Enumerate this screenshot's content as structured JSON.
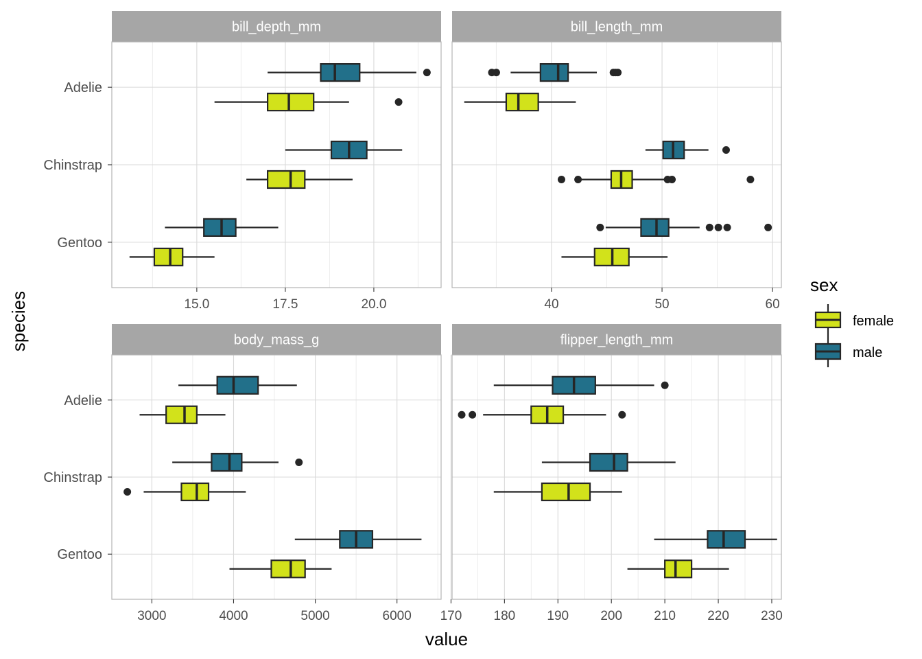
{
  "colors": {
    "female": "#d2e21b",
    "male": "#22708a",
    "strip_bg": "#a6a6a6",
    "strip_text": "#ffffff",
    "panel_border": "#b3b3b3",
    "grid_major": "#d9d9d9",
    "grid_minor": "#ececec",
    "box_line": "#262626",
    "axis_text": "#4d4d4d"
  },
  "chart_data": {
    "type": "boxplot",
    "xlabel": "value",
    "ylabel": "species",
    "categories": [
      "Adelie",
      "Chinstrap",
      "Gentoo"
    ],
    "legend": {
      "title": "sex",
      "position": "right",
      "entries": [
        {
          "key": "female",
          "label": "female"
        },
        {
          "key": "male",
          "label": "male"
        }
      ]
    },
    "panels": [
      {
        "title": "bill_depth_mm",
        "xlim": [
          12.6,
          21.9
        ],
        "ticks": [
          15,
          17.5,
          20
        ],
        "tick_labels": [
          "15.0",
          "17.5",
          "20.0"
        ],
        "minor_ticks": [
          13.75,
          16.25,
          18.75,
          21.25
        ],
        "boxes": [
          {
            "species": "Adelie",
            "sex": "female",
            "whisker_low": 15.5,
            "q1": 17.0,
            "median": 17.6,
            "q3": 18.3,
            "whisker_high": 19.3,
            "outliers": [
              20.7
            ]
          },
          {
            "species": "Adelie",
            "sex": "male",
            "whisker_low": 17.0,
            "q1": 18.5,
            "median": 18.9,
            "q3": 19.6,
            "whisker_high": 21.2,
            "outliers": [
              21.5
            ]
          },
          {
            "species": "Chinstrap",
            "sex": "female",
            "whisker_low": 16.4,
            "q1": 17.0,
            "median": 17.65,
            "q3": 18.05,
            "whisker_high": 19.4,
            "outliers": []
          },
          {
            "species": "Chinstrap",
            "sex": "male",
            "whisker_low": 17.5,
            "q1": 18.8,
            "median": 19.3,
            "q3": 19.8,
            "whisker_high": 20.8,
            "outliers": []
          },
          {
            "species": "Gentoo",
            "sex": "female",
            "whisker_low": 13.1,
            "q1": 13.8,
            "median": 14.25,
            "q3": 14.6,
            "whisker_high": 15.5,
            "outliers": []
          },
          {
            "species": "Gentoo",
            "sex": "male",
            "whisker_low": 14.1,
            "q1": 15.2,
            "median": 15.7,
            "q3": 16.1,
            "whisker_high": 17.3,
            "outliers": []
          }
        ]
      },
      {
        "title": "bill_length_mm",
        "xlim": [
          31.0,
          60.8
        ],
        "ticks": [
          40,
          50,
          60
        ],
        "tick_labels": [
          "40",
          "50",
          "60"
        ],
        "minor_ticks": [
          35,
          45,
          55
        ],
        "boxes": [
          {
            "species": "Adelie",
            "sex": "female",
            "whisker_low": 32.1,
            "q1": 35.9,
            "median": 37.0,
            "q3": 38.8,
            "whisker_high": 42.2,
            "outliers": []
          },
          {
            "species": "Adelie",
            "sex": "male",
            "whisker_low": 36.3,
            "q1": 39.0,
            "median": 40.6,
            "q3": 41.5,
            "whisker_high": 44.1,
            "outliers": [
              34.6,
              35.0,
              45.6,
              45.8,
              46.0
            ]
          },
          {
            "species": "Chinstrap",
            "sex": "female",
            "whisker_low": 42.5,
            "q1": 45.4,
            "median": 46.3,
            "q3": 47.3,
            "whisker_high": 50.2,
            "outliers": [
              40.9,
              42.4,
              50.5,
              50.9,
              58.0
            ]
          },
          {
            "species": "Chinstrap",
            "sex": "male",
            "whisker_low": 48.5,
            "q1": 50.1,
            "median": 51.0,
            "q3": 52.0,
            "whisker_high": 54.2,
            "outliers": [
              55.8
            ]
          },
          {
            "species": "Gentoo",
            "sex": "female",
            "whisker_low": 40.9,
            "q1": 43.9,
            "median": 45.5,
            "q3": 47.0,
            "whisker_high": 50.5,
            "outliers": []
          },
          {
            "species": "Gentoo",
            "sex": "male",
            "whisker_low": 44.9,
            "q1": 48.1,
            "median": 49.5,
            "q3": 50.6,
            "whisker_high": 53.4,
            "outliers": [
              44.4,
              54.3,
              55.1,
              55.9,
              59.6
            ]
          }
        ]
      },
      {
        "title": "body_mass_g",
        "xlim": [
          2510,
          6540
        ],
        "ticks": [
          3000,
          4000,
          5000,
          6000
        ],
        "tick_labels": [
          "3000",
          "4000",
          "5000",
          "6000"
        ],
        "minor_ticks": [
          3500,
          4500,
          5500,
          6500
        ],
        "boxes": [
          {
            "species": "Adelie",
            "sex": "female",
            "whisker_low": 2850,
            "q1": 3175,
            "median": 3400,
            "q3": 3550,
            "whisker_high": 3900,
            "outliers": []
          },
          {
            "species": "Adelie",
            "sex": "male",
            "whisker_low": 3325,
            "q1": 3800,
            "median": 4000,
            "q3": 4300,
            "whisker_high": 4775,
            "outliers": []
          },
          {
            "species": "Chinstrap",
            "sex": "female",
            "whisker_low": 2900,
            "q1": 3362,
            "median": 3550,
            "q3": 3694,
            "whisker_high": 4150,
            "outliers": [
              2700
            ]
          },
          {
            "species": "Chinstrap",
            "sex": "male",
            "whisker_low": 3250,
            "q1": 3731,
            "median": 3950,
            "q3": 4100,
            "whisker_high": 4550,
            "outliers": [
              4800
            ]
          },
          {
            "species": "Gentoo",
            "sex": "female",
            "whisker_low": 3950,
            "q1": 4462,
            "median": 4700,
            "q3": 4875,
            "whisker_high": 5200,
            "outliers": []
          },
          {
            "species": "Gentoo",
            "sex": "male",
            "whisker_low": 4750,
            "q1": 5300,
            "median": 5500,
            "q3": 5700,
            "whisker_high": 6300,
            "outliers": []
          }
        ]
      },
      {
        "title": "flipper_length_mm",
        "xlim": [
          170.2,
          231.8
        ],
        "ticks": [
          170,
          180,
          190,
          200,
          210,
          220,
          230
        ],
        "tick_labels": [
          "170",
          "180",
          "190",
          "200",
          "210",
          "220",
          "230"
        ],
        "minor_ticks": [
          175,
          185,
          195,
          205,
          215,
          225
        ],
        "boxes": [
          {
            "species": "Adelie",
            "sex": "female",
            "whisker_low": 176,
            "q1": 185,
            "median": 188,
            "q3": 191,
            "whisker_high": 199,
            "outliers": [
              172,
              174,
              202
            ]
          },
          {
            "species": "Adelie",
            "sex": "male",
            "whisker_low": 178,
            "q1": 189,
            "median": 193,
            "q3": 197,
            "whisker_high": 208,
            "outliers": [
              210
            ]
          },
          {
            "species": "Chinstrap",
            "sex": "female",
            "whisker_low": 178,
            "q1": 187,
            "median": 192,
            "q3": 196,
            "whisker_high": 202,
            "outliers": []
          },
          {
            "species": "Chinstrap",
            "sex": "male",
            "whisker_low": 187,
            "q1": 196,
            "median": 200.5,
            "q3": 203,
            "whisker_high": 212,
            "outliers": []
          },
          {
            "species": "Gentoo",
            "sex": "female",
            "whisker_low": 203,
            "q1": 210,
            "median": 212,
            "q3": 215,
            "whisker_high": 222,
            "outliers": []
          },
          {
            "species": "Gentoo",
            "sex": "male",
            "whisker_low": 208,
            "q1": 218,
            "median": 221,
            "q3": 225,
            "whisker_high": 231,
            "outliers": []
          }
        ]
      }
    ]
  }
}
